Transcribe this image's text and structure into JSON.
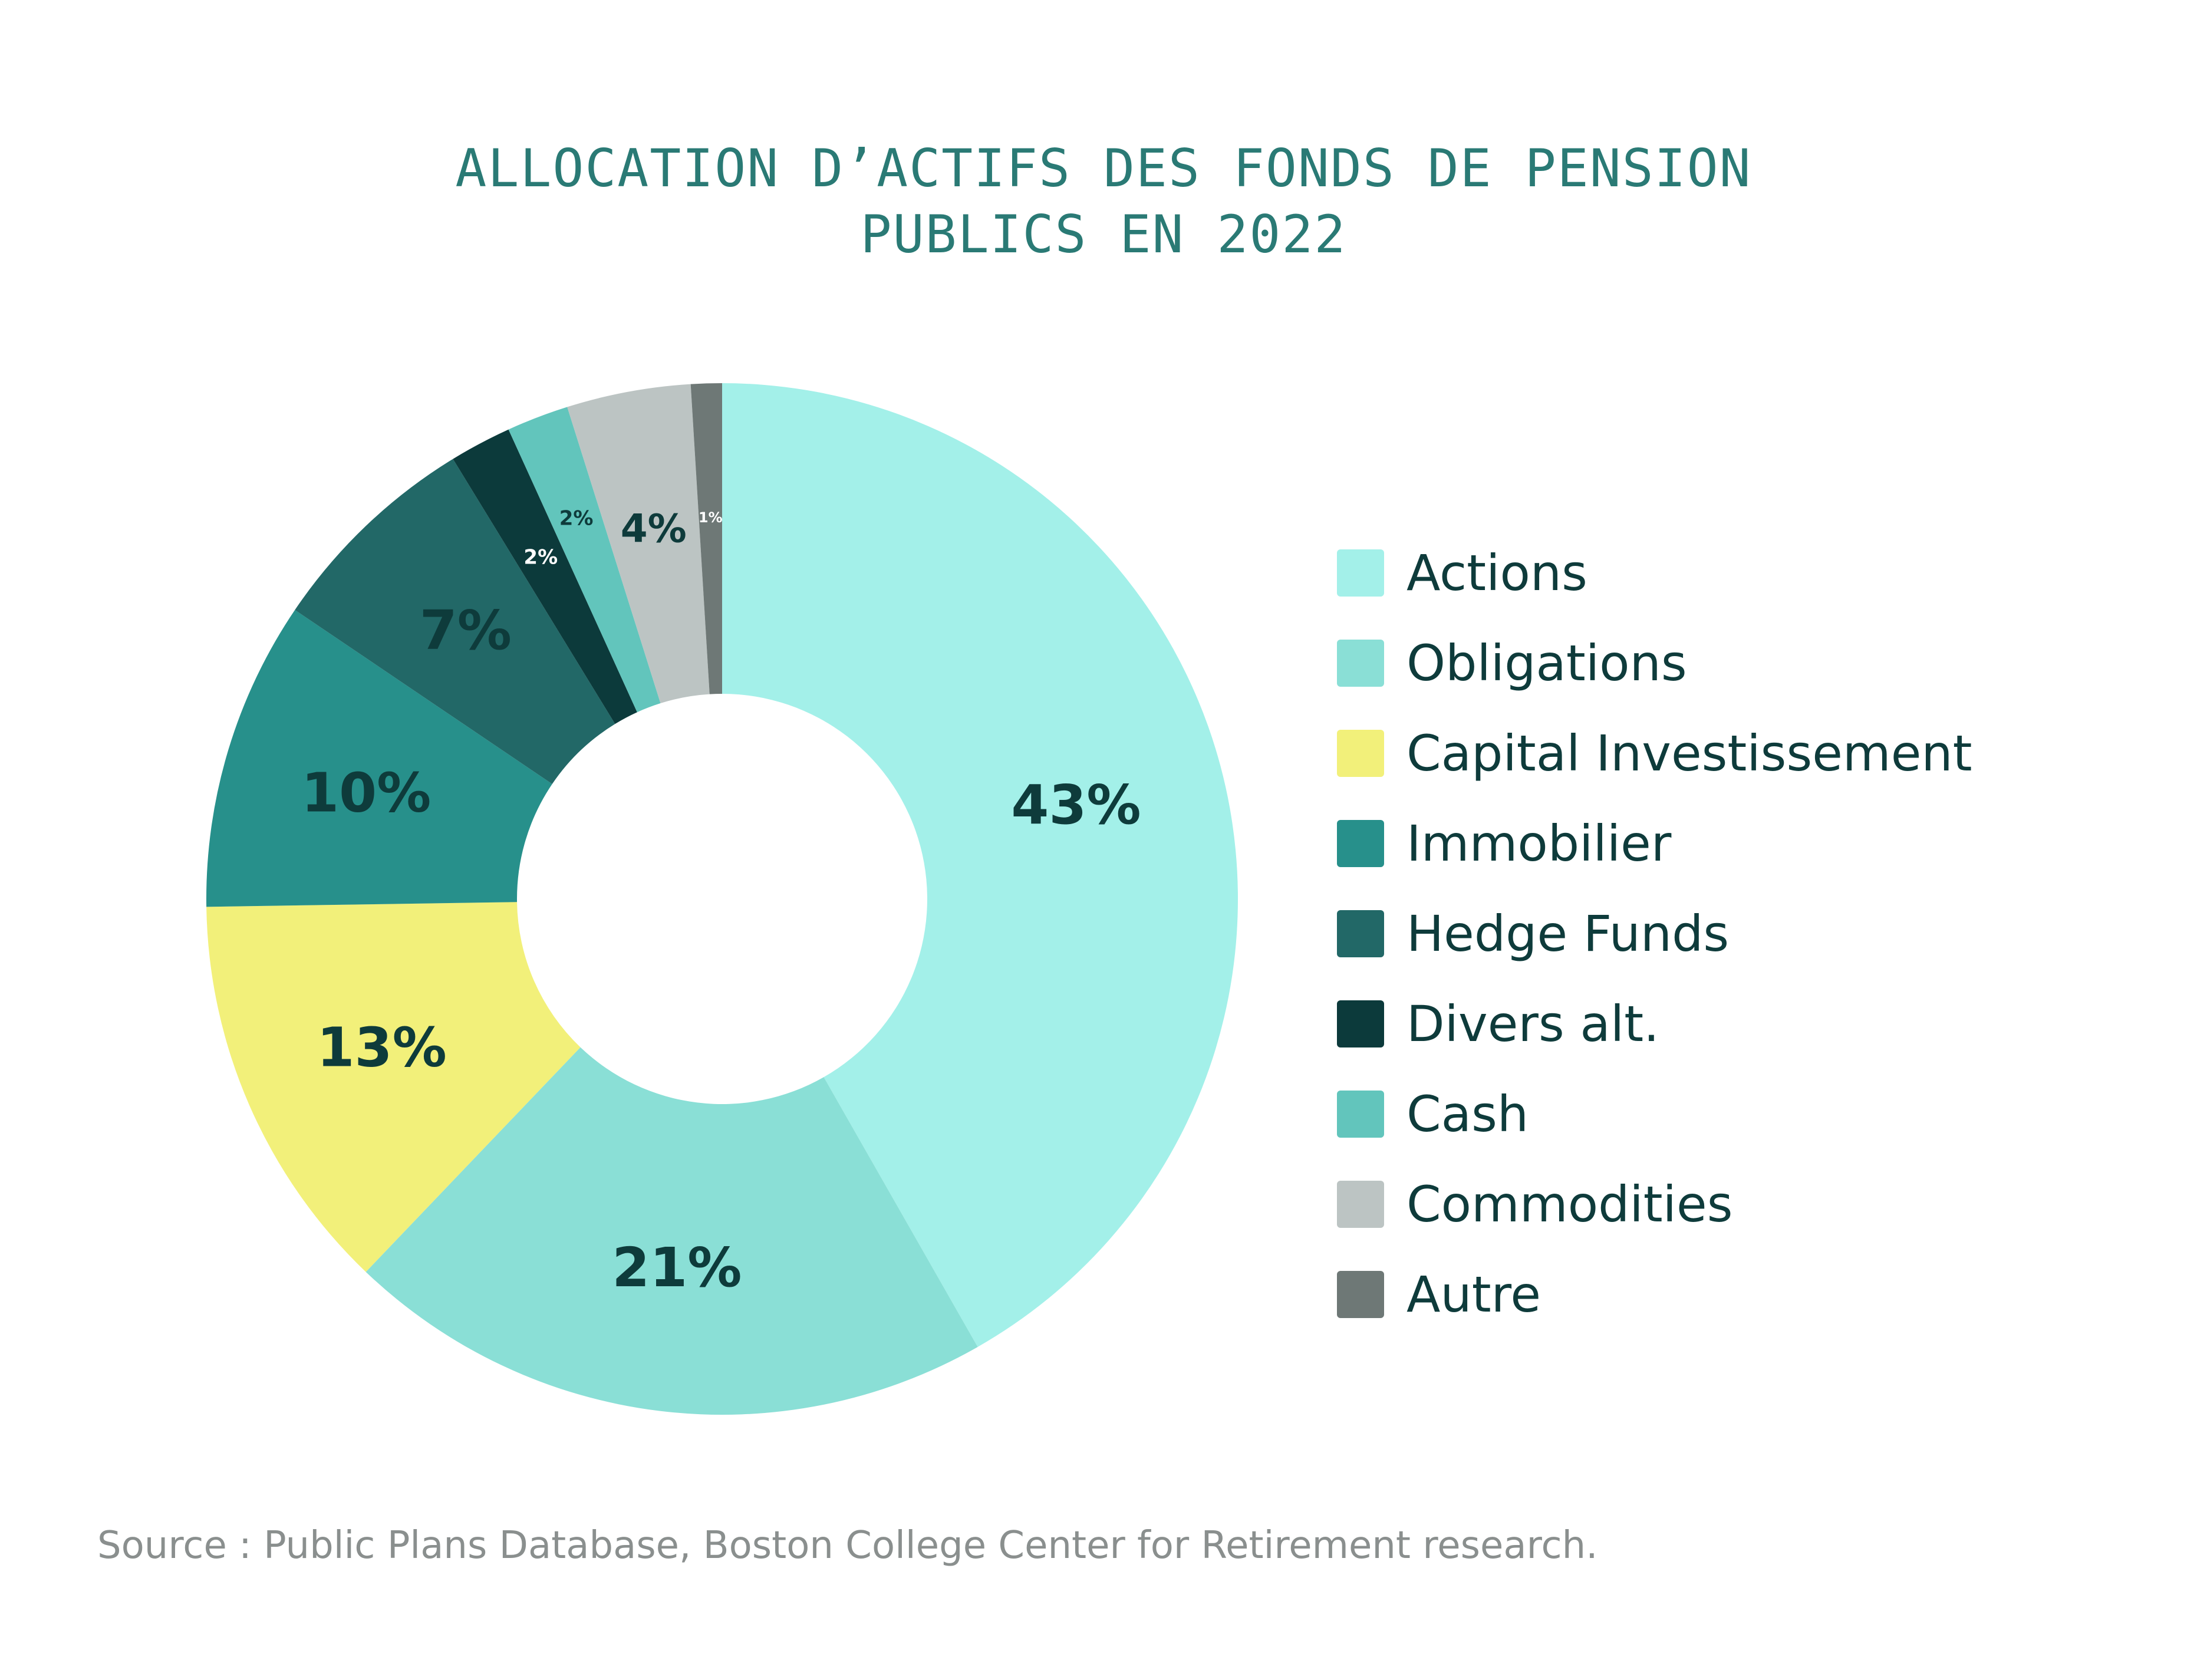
{
  "chart_data": {
    "type": "pie",
    "title_lines": [
      "ALLOCATION D’ACTIFS DES FONDS DE PENSION",
      "PUBLICS EN 2022"
    ],
    "categories": [
      "Actions",
      "Obligations",
      "Capital Investissement",
      "Immobilier",
      "Hedge Funds",
      "Divers alt.",
      "Cash",
      "Commodities",
      "Autre"
    ],
    "values": [
      43,
      21,
      13,
      10,
      7,
      2,
      2,
      4,
      1
    ],
    "data_labels": [
      "43%",
      "21%",
      "13%",
      "10%",
      "7%",
      "2%",
      "2%",
      "4%",
      "1%"
    ],
    "colors": [
      "#a3f0e9",
      "#8adfd6",
      "#f2f07a",
      "#27908b",
      "#226867",
      "#0c3a3b",
      "#62c5bc",
      "#bcc4c3",
      "#6e7876"
    ],
    "label_colors": [
      "#0e3b3b",
      "#0e3b3b",
      "#0e3b3b",
      "#0e3b3b",
      "#0e3b3b",
      "#ffffff",
      "#0e3b3b",
      "#0e3b3b",
      "#ffffff"
    ],
    "donut": true,
    "legend_position": "right"
  },
  "source": "Source :  Public Plans Database, Boston College Center for Retirement research."
}
